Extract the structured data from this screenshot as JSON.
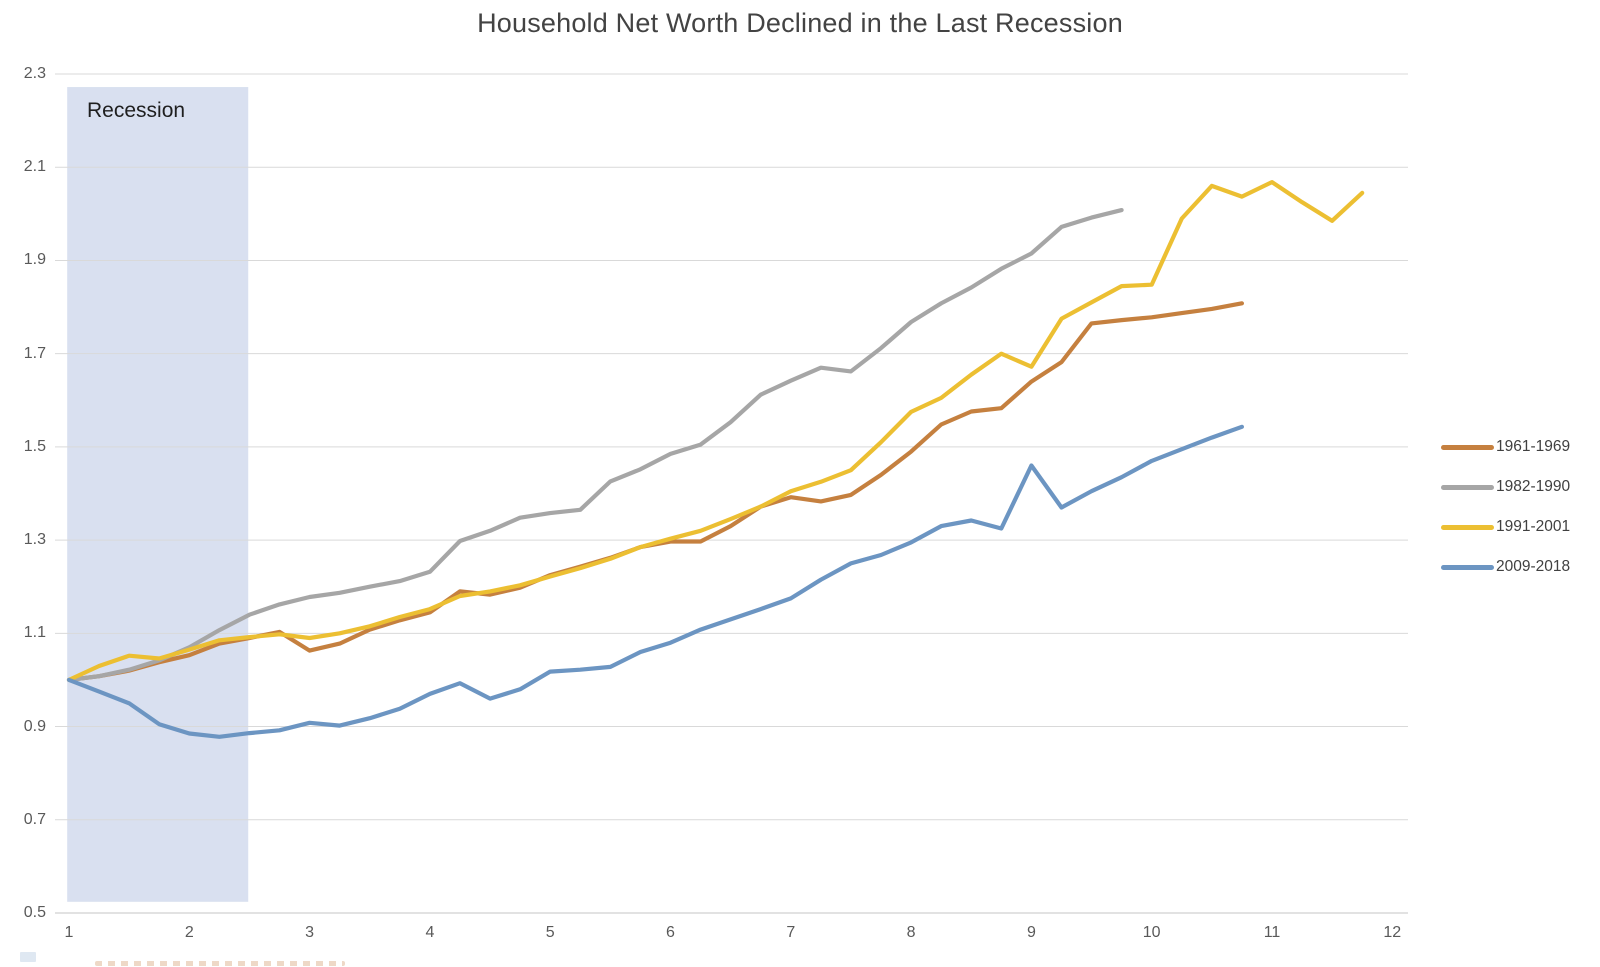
{
  "page": {
    "background": "#ffffff"
  },
  "annotations": {
    "recession_label": "Recession"
  },
  "colors": {
    "orange_series": "#C5803F",
    "gray_series": "#A6A6A6",
    "yellow_series": "#ECBF32",
    "blue_series": "#6C95C2",
    "gridline": "#D9D9D9",
    "axis_line": "#C6C6C6",
    "tick_label": "#595959",
    "title": "#434343",
    "recession_band": "#D9E0F0",
    "recession_label": "#1F1F1F",
    "legend_label": "#404040"
  },
  "chart_data": {
    "type": "line",
    "title": "Household Net Worth Declined in the Last Recession",
    "xlabel": "",
    "ylabel": "",
    "x_ticks": [
      1,
      2,
      3,
      4,
      5,
      6,
      7,
      8,
      9,
      10,
      11,
      12
    ],
    "y_ticks": [
      "0.5",
      "0.7",
      "0.9",
      "1.1",
      "1.3",
      "1.5",
      "1.7",
      "1.9",
      "2.1",
      "2.3"
    ],
    "xlim": [
      1,
      12
    ],
    "ylim": [
      0.5,
      2.3
    ],
    "grid": "horizontal",
    "legend_position": "right",
    "recession_band": {
      "label": "Recession",
      "x0": 0.985,
      "x1": 2.49,
      "y0": 0.524,
      "y1": 2.272
    },
    "series": [
      {
        "name": "1961-1969",
        "color": "#C5803F",
        "x_start": 1,
        "x_step": 0.25,
        "values": [
          1.0,
          1.008,
          1.02,
          1.038,
          1.053,
          1.078,
          1.09,
          1.103,
          1.063,
          1.078,
          1.108,
          1.128,
          1.145,
          1.19,
          1.183,
          1.198,
          1.225,
          1.243,
          1.262,
          1.285,
          1.297,
          1.297,
          1.33,
          1.372,
          1.392,
          1.383,
          1.397,
          1.44,
          1.49,
          1.548,
          1.576,
          1.583,
          1.64,
          1.682,
          1.765,
          1.772,
          1.778,
          1.787,
          1.796,
          1.808
        ]
      },
      {
        "name": "1982-1990",
        "color": "#A6A6A6",
        "x_start": 1,
        "x_step": 0.25,
        "values": [
          1.0,
          1.008,
          1.022,
          1.042,
          1.07,
          1.107,
          1.14,
          1.162,
          1.178,
          1.187,
          1.2,
          1.212,
          1.232,
          1.298,
          1.32,
          1.348,
          1.358,
          1.365,
          1.426,
          1.452,
          1.485,
          1.505,
          1.553,
          1.612,
          1.642,
          1.67,
          1.662,
          1.712,
          1.768,
          1.808,
          1.842,
          1.882,
          1.915,
          1.972,
          1.992,
          2.008
        ]
      },
      {
        "name": "1991-2001",
        "color": "#ECBF32",
        "x_start": 1,
        "x_step": 0.25,
        "values": [
          1.0,
          1.03,
          1.052,
          1.046,
          1.065,
          1.085,
          1.092,
          1.098,
          1.09,
          1.1,
          1.115,
          1.135,
          1.152,
          1.18,
          1.19,
          1.203,
          1.222,
          1.24,
          1.26,
          1.285,
          1.303,
          1.32,
          1.345,
          1.372,
          1.405,
          1.425,
          1.45,
          1.51,
          1.575,
          1.605,
          1.655,
          1.7,
          1.672,
          1.775,
          1.81,
          1.845,
          1.848,
          1.99,
          2.06,
          2.037,
          2.068,
          2.025,
          1.985,
          2.045
        ]
      },
      {
        "name": "2009-2018",
        "color": "#6C95C2",
        "x_start": 1,
        "x_step": 0.25,
        "values": [
          1.0,
          0.975,
          0.95,
          0.905,
          0.885,
          0.878,
          0.886,
          0.892,
          0.908,
          0.902,
          0.918,
          0.938,
          0.97,
          0.993,
          0.96,
          0.98,
          1.018,
          1.022,
          1.028,
          1.06,
          1.08,
          1.108,
          1.13,
          1.152,
          1.175,
          1.215,
          1.25,
          1.268,
          1.295,
          1.33,
          1.342,
          1.325,
          1.46,
          1.37,
          1.405,
          1.435,
          1.47,
          1.495,
          1.52,
          1.543
        ]
      }
    ]
  }
}
